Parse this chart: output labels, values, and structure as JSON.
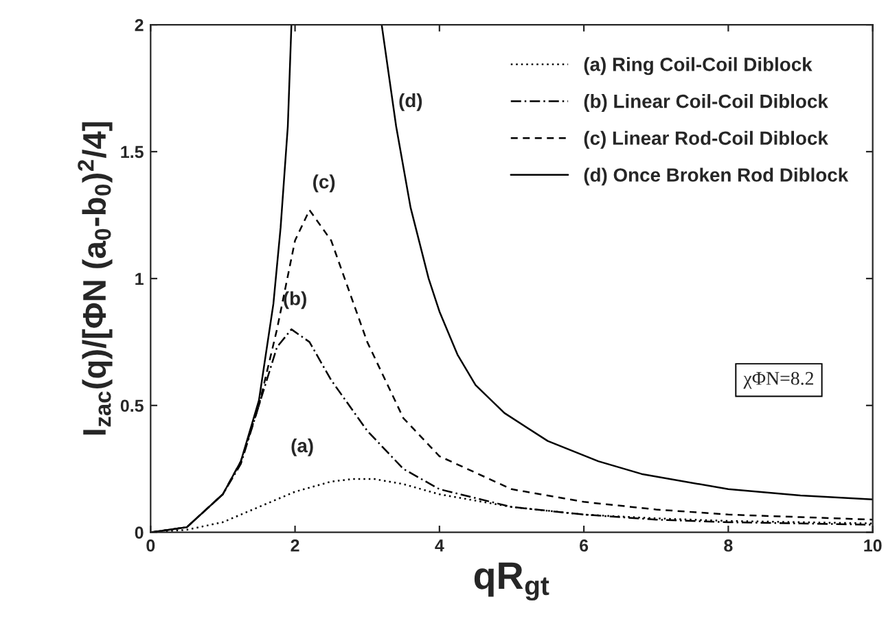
{
  "chart_data": {
    "type": "line",
    "xlabel": "qR$_{gt}$",
    "ylabel": "I$_{zac}$(q)/[ΦN (a$_{0}$-b$_{0}$)$^{2}$/4]",
    "xlim": [
      0,
      10
    ],
    "ylim": [
      0,
      2
    ],
    "xticks": [
      0,
      2,
      4,
      6,
      8,
      10
    ],
    "yticks": [
      0,
      0.5,
      1,
      1.5,
      2
    ],
    "grid": false,
    "legend": "top right",
    "series": [
      {
        "name": "(a) Ring Coil-Coil Diblock",
        "color": "#000000",
        "line_style": "dotted",
        "x": [
          0,
          0.5,
          1,
          1.5,
          2,
          2.5,
          2.8,
          3.1,
          3.5,
          4,
          5,
          6,
          7,
          8,
          9,
          10
        ],
        "values": [
          0,
          0.01,
          0.04,
          0.1,
          0.16,
          0.2,
          0.21,
          0.21,
          0.19,
          0.15,
          0.1,
          0.07,
          0.055,
          0.045,
          0.04,
          0.035
        ]
      },
      {
        "name": "(b) Linear Coil-Coil Diblock",
        "color": "#000000",
        "line_style": "dashdot",
        "x": [
          0,
          0.5,
          1,
          1.25,
          1.5,
          1.75,
          1.95,
          2.2,
          2.5,
          3,
          3.5,
          4,
          5,
          6,
          7,
          8,
          9,
          10
        ],
        "values": [
          0,
          0.02,
          0.15,
          0.27,
          0.5,
          0.73,
          0.8,
          0.75,
          0.6,
          0.4,
          0.25,
          0.17,
          0.1,
          0.07,
          0.05,
          0.04,
          0.035,
          0.03
        ]
      },
      {
        "name": "(c) Linear Rod-Coil Diblock",
        "color": "#000000",
        "line_style": "dashed",
        "x": [
          0,
          0.5,
          1,
          1.25,
          1.5,
          1.75,
          2,
          2.2,
          2.5,
          3,
          3.5,
          4,
          5,
          6,
          7,
          8,
          9,
          10
        ],
        "values": [
          0,
          0.02,
          0.15,
          0.28,
          0.5,
          0.8,
          1.15,
          1.27,
          1.15,
          0.75,
          0.45,
          0.3,
          0.17,
          0.12,
          0.09,
          0.07,
          0.06,
          0.05
        ]
      },
      {
        "name": "(d) Once Broken Rod Diblock",
        "color": "#000000",
        "line_style": "solid",
        "x": [
          0,
          0.5,
          1,
          1.25,
          1.5,
          1.7,
          1.8,
          1.9,
          1.95,
          2.5,
          3.2,
          3.4,
          3.6,
          3.85,
          4,
          4.25,
          4.5,
          4.9,
          5.5,
          6.2,
          6.8,
          8,
          9,
          10
        ],
        "values": [
          0,
          0.02,
          0.15,
          0.28,
          0.52,
          0.9,
          1.2,
          1.6,
          2.0,
          null,
          2.0,
          1.6,
          1.28,
          1.0,
          0.87,
          0.7,
          0.58,
          0.47,
          0.36,
          0.28,
          0.23,
          0.17,
          0.145,
          0.13
        ]
      }
    ],
    "annotations": [
      "(a)",
      "(b)",
      "(c)",
      "(d)",
      "χΦN=8.2"
    ]
  }
}
